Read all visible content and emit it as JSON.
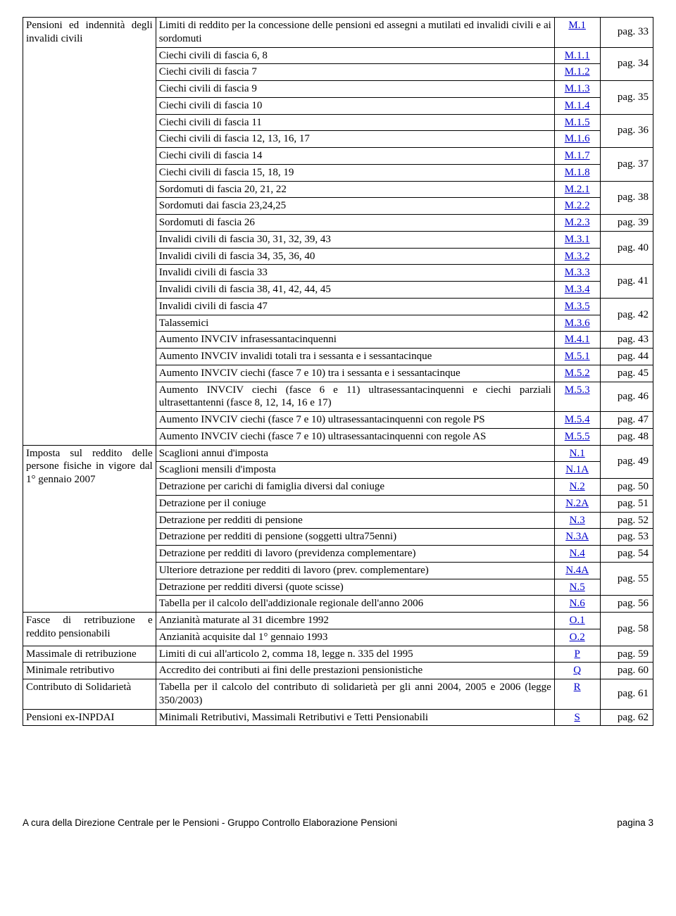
{
  "sections": [
    {
      "left": "Pensioni ed indennità degli invalidi civili",
      "rows": [
        {
          "desc": "Limiti di reddito per la concessione delle pensioni ed assegni a mutilati ed invalidi civili e ai sordomuti",
          "code": "M.1",
          "page": "pag. 33",
          "rowspan": 1
        },
        {
          "group": [
            {
              "desc": "Ciechi civili di fascia 6, 8",
              "code": "M.1.1"
            },
            {
              "desc": "Ciechi civili di fascia 7",
              "code": "M.1.2"
            }
          ],
          "page": "pag. 34"
        },
        {
          "group": [
            {
              "desc": "Ciechi civili di fascia 9",
              "code": "M.1.3"
            },
            {
              "desc": "Ciechi civili di fascia 10",
              "code": "M.1.4"
            }
          ],
          "page": "pag. 35"
        },
        {
          "group": [
            {
              "desc": "Ciechi civili di fascia 11",
              "code": "M.1.5"
            },
            {
              "desc": "Ciechi civili di fascia 12, 13, 16, 17",
              "code": "M.1.6"
            }
          ],
          "page": "pag. 36"
        },
        {
          "group": [
            {
              "desc": "Ciechi civili di fascia 14",
              "code": "M.1.7"
            },
            {
              "desc": "Ciechi civili di fascia 15, 18, 19",
              "code": "M.1.8"
            }
          ],
          "page": "pag. 37"
        },
        {
          "group": [
            {
              "desc": "Sordomuti di fascia 20, 21, 22",
              "code": "M.2.1"
            },
            {
              "desc": "Sordomuti dai fascia 23,24,25",
              "code": "M.2.2"
            }
          ],
          "page": "pag. 38"
        },
        {
          "desc": "Sordomuti di fascia 26",
          "code": "M.2.3",
          "page": "pag. 39"
        },
        {
          "group": [
            {
              "desc": "Invalidi civili di fascia 30, 31, 32, 39, 43",
              "code": "M.3.1"
            },
            {
              "desc": "Invalidi civili di fascia 34, 35, 36, 40",
              "code": "M.3.2"
            }
          ],
          "page": "pag. 40"
        },
        {
          "group": [
            {
              "desc": "Invalidi civili di fascia 33",
              "code": "M.3.3"
            },
            {
              "desc": "Invalidi civili di fascia 38, 41, 42, 44, 45",
              "code": "M.3.4"
            }
          ],
          "page": "pag. 41"
        },
        {
          "group": [
            {
              "desc": "Invalidi civili di fascia 47",
              "code": "M.3.5"
            },
            {
              "desc": "Talassemici",
              "code": "M.3.6"
            }
          ],
          "page": "pag. 42"
        },
        {
          "desc": "Aumento INVCIV infrasessantacinquenni",
          "code": "M.4.1",
          "page": "pag. 43"
        },
        {
          "desc": "Aumento INVCIV invalidi totali tra i sessanta e i sessantacinque",
          "code": "M.5.1",
          "page": "pag. 44"
        },
        {
          "desc": "Aumento INVCIV ciechi (fasce 7 e 10) tra i sessanta e i sessantacinque",
          "code": "M.5.2",
          "page": "pag. 45"
        },
        {
          "desc": "Aumento INVCIV ciechi (fasce 6 e 11) ultrasessantacinquenni e ciechi parziali ultrasettantenni (fasce 8, 12, 14, 16 e 17)",
          "code": "M.5.3",
          "page": "pag. 46"
        },
        {
          "desc": "Aumento INVCIV ciechi (fasce 7 e 10) ultrasessantacinquenni con regole PS",
          "code": "M.5.4",
          "page": "pag. 47"
        },
        {
          "desc": "Aumento INVCIV ciechi (fasce 7 e 10) ultrasessantacinquenni con regole AS",
          "code": "M.5.5",
          "page": "pag. 48"
        }
      ]
    },
    {
      "left": "Imposta sul reddito delle persone fisiche  in vigore dal 1° gennaio 2007",
      "rows": [
        {
          "group": [
            {
              "desc": "Scaglioni annui d'imposta",
              "code": "N.1"
            },
            {
              "desc": "Scaglioni mensili d'imposta",
              "code": "N.1A"
            }
          ],
          "page": "pag. 49"
        },
        {
          "desc": "Detrazione per carichi di famiglia diversi dal coniuge",
          "code": "N.2",
          "page": "pag. 50"
        },
        {
          "desc": "Detrazione per il coniuge",
          "code": "N.2A",
          "page": "pag. 51"
        },
        {
          "desc": "Detrazione per redditi di pensione",
          "code": "N.3",
          "page": "pag. 52"
        },
        {
          "desc": "Detrazione per redditi di pensione (soggetti ultra75enni)",
          "code": "N.3A",
          "page": "pag. 53"
        },
        {
          "desc": "Detrazione per redditi di lavoro (previdenza complementare)",
          "code": "N.4",
          "page": "pag. 54"
        },
        {
          "group": [
            {
              "desc": "Ulteriore detrazione per redditi di lavoro (prev. complementare)",
              "code": "N.4A"
            },
            {
              "desc": "Detrazione per redditi diversi (quote scisse)",
              "code": "N.5"
            }
          ],
          "page": "pag. 55"
        },
        {
          "desc": "Tabella per il calcolo dell'addizionale regionale dell'anno 2006",
          "code": "N.6",
          "page": "pag. 56"
        }
      ]
    },
    {
      "left": "Fasce di retribuzione e reddito pensionabili",
      "rows": [
        {
          "group": [
            {
              "desc": "Anzianità maturate al 31 dicembre 1992",
              "code": "O.1"
            },
            {
              "desc": "Anzianità acquisite dal 1° gennaio 1993",
              "code": "O.2"
            }
          ],
          "page": "pag. 58"
        }
      ]
    },
    {
      "left": "Massimale di retribuzione",
      "rows": [
        {
          "desc": "Limiti di cui all'articolo 2, comma 18, legge n. 335 del 1995",
          "code": "P",
          "page": "pag. 59"
        }
      ]
    },
    {
      "left": "Minimale retributivo",
      "rows": [
        {
          "desc": "Accredito dei contributi ai fini delle prestazioni pensionistiche",
          "code": "Q",
          "page": "pag. 60"
        }
      ]
    },
    {
      "left": "Contributo di Solidarietà",
      "rows": [
        {
          "desc": "Tabella per il calcolo del contributo di solidarietà per gli anni 2004, 2005 e 2006 (legge 350/2003)",
          "code": "R",
          "page": "pag. 61"
        }
      ]
    },
    {
      "left": "Pensioni ex-INPDAI",
      "rows": [
        {
          "desc": "Minimali Retributivi, Massimali Retributivi e Tetti Pensionabili",
          "code": "S",
          "page": "pag. 62"
        }
      ]
    }
  ],
  "footer": {
    "left": "A cura della Direzione Centrale per le Pensioni - Gruppo Controllo Elaborazione Pensioni",
    "right": "pagina  3"
  }
}
